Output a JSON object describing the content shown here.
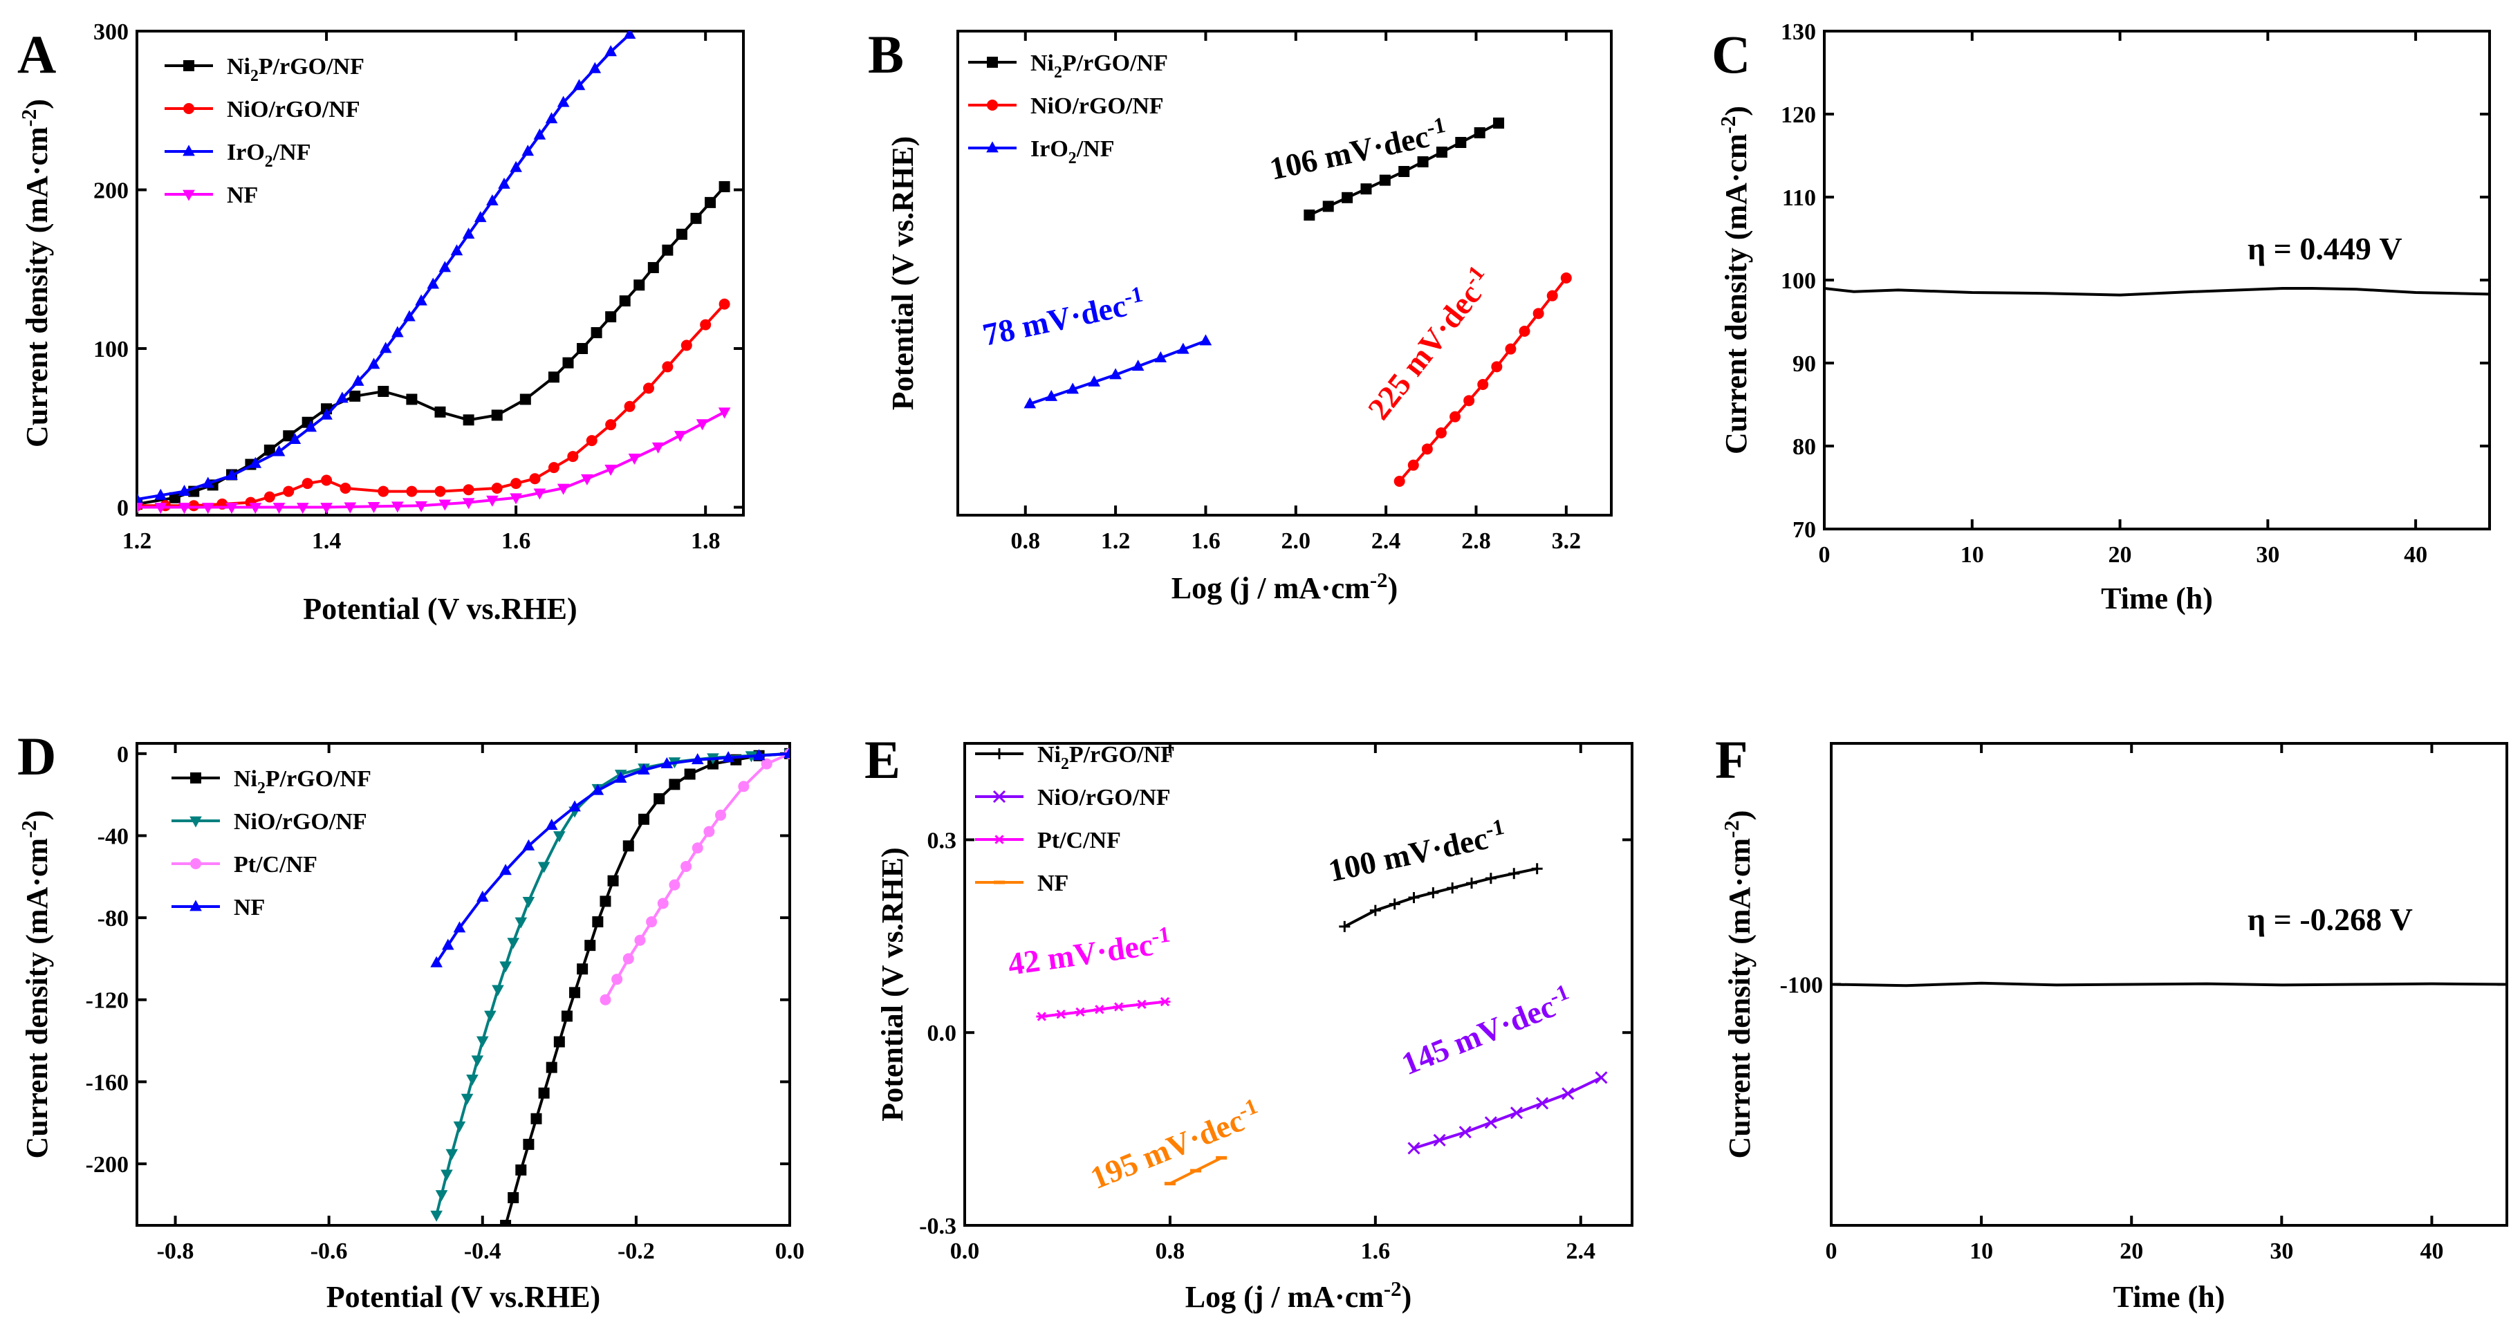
{
  "chart_data": [
    {
      "panel": "A",
      "type": "line",
      "xlabel": "Potential (V vs.RHE)",
      "ylabel": "Current density (mA·cm⁻²)",
      "xlim": [
        1.2,
        1.84
      ],
      "ylim": [
        -5,
        300
      ],
      "xticks": [
        1.2,
        1.4,
        1.6,
        1.8
      ],
      "xticklabels": [
        "1.2",
        "1.4",
        "1.6",
        "1.8"
      ],
      "yticks": [
        0,
        100,
        200,
        300
      ],
      "yticklabels": [
        "0",
        "100",
        "200",
        "300"
      ],
      "series": [
        {
          "name": "Ni₂P/rGO/NF",
          "color": "#000000",
          "marker": "square",
          "x": [
            1.2,
            1.24,
            1.28,
            1.32,
            1.36,
            1.4,
            1.43,
            1.46,
            1.49,
            1.52,
            1.55,
            1.58,
            1.61,
            1.64,
            1.67,
            1.7,
            1.73,
            1.76,
            1.79,
            1.82
          ],
          "y": [
            2,
            6,
            14,
            27,
            45,
            62,
            70,
            73,
            68,
            60,
            55,
            58,
            68,
            82,
            100,
            120,
            140,
            162,
            182,
            202
          ]
        },
        {
          "name": "NiO/rGO/NF",
          "color": "#ff0000",
          "marker": "circle",
          "x": [
            1.2,
            1.26,
            1.32,
            1.36,
            1.38,
            1.4,
            1.42,
            1.46,
            1.52,
            1.58,
            1.62,
            1.66,
            1.7,
            1.74,
            1.78,
            1.82
          ],
          "y": [
            1,
            1,
            3,
            10,
            15,
            17,
            12,
            10,
            10,
            12,
            18,
            32,
            52,
            75,
            102,
            128
          ]
        },
        {
          "name": "IrO₂/NF",
          "color": "#0000ff",
          "marker": "triangle-up",
          "x": [
            1.2,
            1.25,
            1.3,
            1.35,
            1.4,
            1.45,
            1.5,
            1.55,
            1.6,
            1.65,
            1.7,
            1.72
          ],
          "y": [
            5,
            10,
            20,
            35,
            58,
            90,
            130,
            172,
            214,
            255,
            287,
            298
          ]
        },
        {
          "name": "NF",
          "color": "#ff00ff",
          "marker": "triangle-down",
          "x": [
            1.2,
            1.3,
            1.4,
            1.5,
            1.55,
            1.6,
            1.65,
            1.7,
            1.75,
            1.82
          ],
          "y": [
            0,
            0,
            0,
            1,
            3,
            6,
            12,
            24,
            38,
            60
          ]
        }
      ]
    },
    {
      "panel": "B",
      "type": "line",
      "xlabel": "Log (j / mA·cm⁻²)",
      "ylabel": "Potential (V vs.RHE)",
      "xlim": [
        0.5,
        3.4
      ],
      "xticks": [
        0.8,
        1.2,
        1.6,
        2.0,
        2.4,
        2.8,
        3.2
      ],
      "xticklabels": [
        "0.8",
        "1.2",
        "1.6",
        "2.0",
        "2.4",
        "2.8",
        "3.2"
      ],
      "ylim": [
        0,
        1
      ],
      "series": [
        {
          "name": "Ni₂P/rGO/NF",
          "color": "#000000",
          "marker": "square",
          "x": [
            2.06,
            2.48,
            2.9
          ],
          "y": [
            0.62,
            0.71,
            0.81
          ]
        },
        {
          "name": "NiO/rGO/NF",
          "color": "#ff0000",
          "marker": "circle",
          "x": [
            2.46,
            2.83,
            3.2
          ],
          "y": [
            0.07,
            0.27,
            0.49
          ]
        },
        {
          "name": "IrO₂/NF",
          "color": "#0000ff",
          "marker": "triangle-up",
          "x": [
            0.82,
            1.2,
            1.6
          ],
          "y": [
            0.23,
            0.29,
            0.36
          ]
        }
      ],
      "annotations": [
        {
          "text": "106 mV·dec⁻¹",
          "color": "#000000"
        },
        {
          "text": "225 mV·dec⁻¹",
          "color": "#ff0000"
        },
        {
          "text": "78 mV·dec⁻¹",
          "color": "#0000ff"
        }
      ]
    },
    {
      "panel": "C",
      "type": "line",
      "xlabel": "Time (h)",
      "ylabel": "Current density (mA·cm⁻²)",
      "xlim": [
        0,
        45
      ],
      "ylim": [
        70,
        130
      ],
      "xticks": [
        0,
        10,
        20,
        30,
        40
      ],
      "xticklabels": [
        "0",
        "10",
        "20",
        "30",
        "40"
      ],
      "yticks": [
        70,
        80,
        90,
        100,
        110,
        120,
        130
      ],
      "yticklabels": [
        "70",
        "80",
        "90",
        "100",
        "110",
        "120",
        "130"
      ],
      "series": [
        {
          "name": "Ni₂P/rGO/NF",
          "color": "#000000",
          "x": [
            0,
            2,
            5,
            10,
            15,
            20,
            25,
            31,
            33,
            36,
            40,
            45
          ],
          "y": [
            99.0,
            98.6,
            98.8,
            98.5,
            98.4,
            98.2,
            98.6,
            99.0,
            99.0,
            98.9,
            98.5,
            98.3
          ]
        }
      ],
      "annotations": [
        {
          "text": "η = 0.449 V",
          "color": "#000000"
        }
      ]
    },
    {
      "panel": "D",
      "type": "line",
      "xlabel": "Potential (V vs.RHE)",
      "ylabel": "Current density (mA·cm⁻²)",
      "xlim": [
        -0.85,
        0.0
      ],
      "ylim": [
        -230,
        5
      ],
      "xticks": [
        -0.8,
        -0.6,
        -0.4,
        -0.2,
        0.0
      ],
      "xticklabels": [
        "-0.8",
        "-0.6",
        "-0.4",
        "-0.2",
        "0.0"
      ],
      "yticks": [
        0,
        -40,
        -80,
        -120,
        -160,
        -200
      ],
      "yticklabels": [
        "0",
        "-40",
        "-80",
        "-120",
        "-160",
        "-200"
      ],
      "series": [
        {
          "name": "Ni₂P/rGO/NF",
          "color": "#000000",
          "marker": "square",
          "x": [
            -0.37,
            -0.35,
            -0.33,
            -0.31,
            -0.29,
            -0.27,
            -0.25,
            -0.23,
            -0.21,
            -0.19,
            -0.17,
            -0.15,
            -0.13,
            -0.1,
            -0.07,
            -0.04,
            0.0
          ],
          "y": [
            -230,
            -203,
            -178,
            -153,
            -128,
            -105,
            -82,
            -62,
            -45,
            -32,
            -22,
            -15,
            -10,
            -5,
            -3,
            -1,
            0
          ]
        },
        {
          "name": "NiO/rGO/NF",
          "color": "#007f7f",
          "marker": "triangle-down",
          "x": [
            -0.46,
            -0.44,
            -0.42,
            -0.4,
            -0.38,
            -0.36,
            -0.34,
            -0.32,
            -0.3,
            -0.28,
            -0.25,
            -0.22,
            -0.19,
            -0.15,
            -0.1,
            -0.05,
            0.0
          ],
          "y": [
            -225,
            -195,
            -168,
            -140,
            -115,
            -92,
            -72,
            -55,
            -40,
            -28,
            -17,
            -10,
            -7,
            -4,
            -2,
            -1,
            0
          ]
        },
        {
          "name": "Pt/C/NF",
          "color": "#ff80ff",
          "marker": "circle",
          "x": [
            -0.24,
            -0.21,
            -0.18,
            -0.15,
            -0.12,
            -0.09,
            -0.06,
            -0.03,
            0.0
          ],
          "y": [
            -120,
            -100,
            -82,
            -64,
            -46,
            -30,
            -16,
            -5,
            0
          ]
        },
        {
          "name": "NF",
          "color": "#0000ff",
          "marker": "triangle-up",
          "x": [
            -0.46,
            -0.43,
            -0.4,
            -0.37,
            -0.34,
            -0.31,
            -0.28,
            -0.25,
            -0.22,
            -0.19,
            -0.16,
            -0.12,
            -0.08,
            -0.04,
            0.0
          ],
          "y": [
            -102,
            -85,
            -70,
            -57,
            -45,
            -35,
            -26,
            -18,
            -12,
            -8,
            -5,
            -3,
            -2,
            -1,
            0
          ]
        }
      ]
    },
    {
      "panel": "E",
      "type": "line",
      "xlabel": "Log (j / mA·cm⁻²)",
      "ylabel": "Potential (V vs.RHE)",
      "xlim": [
        0.0,
        2.6
      ],
      "ylim": [
        -0.3,
        0.45
      ],
      "xticks": [
        0.0,
        0.8,
        1.6,
        2.4
      ],
      "xticklabels": [
        "0.0",
        "0.8",
        "1.6",
        "2.4"
      ],
      "yticks": [
        -0.3,
        0.0,
        0.3
      ],
      "yticklabels": [
        "-0.3",
        "0.0",
        "0.3"
      ],
      "series": [
        {
          "name": "Ni₂P/rGO/NF",
          "color": "#000000",
          "marker": "plus",
          "x": [
            1.48,
            1.6,
            1.75,
            1.9,
            2.05,
            2.23
          ],
          "y": [
            0.165,
            0.19,
            0.21,
            0.225,
            0.24,
            0.255
          ]
        },
        {
          "name": "NiO/rGO/NF",
          "color": "#8b00ff",
          "marker": "x",
          "x": [
            1.75,
            1.95,
            2.15,
            2.35,
            2.48
          ],
          "y": [
            -0.18,
            -0.155,
            -0.125,
            -0.095,
            -0.07
          ]
        },
        {
          "name": "Pt/C/NF",
          "color": "#ff00ff",
          "marker": "asterisk",
          "x": [
            0.3,
            0.45,
            0.6,
            0.78
          ],
          "y": [
            0.025,
            0.032,
            0.04,
            0.048
          ]
        },
        {
          "name": "NF",
          "color": "#ff8000",
          "marker": "line",
          "x": [
            0.8,
            0.9,
            1.0
          ],
          "y": [
            -0.235,
            -0.215,
            -0.195
          ]
        }
      ],
      "annotations": [
        {
          "text": "100 mV·dec⁻¹",
          "color": "#000000"
        },
        {
          "text": "42 mV·dec⁻¹",
          "color": "#ff00ff"
        },
        {
          "text": "145 mV·dec⁻¹",
          "color": "#8b00ff"
        },
        {
          "text": "195 mV·dec⁻¹",
          "color": "#ff8000"
        }
      ]
    },
    {
      "panel": "F",
      "type": "line",
      "xlabel": "Time (h)",
      "ylabel": "Current density (mA·cm⁻²)",
      "xlim": [
        0,
        45
      ],
      "ylim": [
        -140,
        -60
      ],
      "xticks": [
        0,
        10,
        20,
        30,
        40
      ],
      "xticklabels": [
        "0",
        "10",
        "20",
        "30",
        "40"
      ],
      "yticks": [
        -100
      ],
      "yticklabels": [
        "-100"
      ],
      "series": [
        {
          "name": "Ni₂P/rGO/NF",
          "color": "#000000",
          "x": [
            0,
            5,
            10,
            15,
            20,
            25,
            30,
            35,
            40,
            45
          ],
          "y": [
            -100,
            -100.2,
            -99.8,
            -100.1,
            -100,
            -99.9,
            -100.1,
            -100,
            -99.9,
            -100
          ]
        }
      ],
      "annotations": [
        {
          "text": "η = -0.268 V",
          "color": "#000000"
        }
      ]
    }
  ]
}
